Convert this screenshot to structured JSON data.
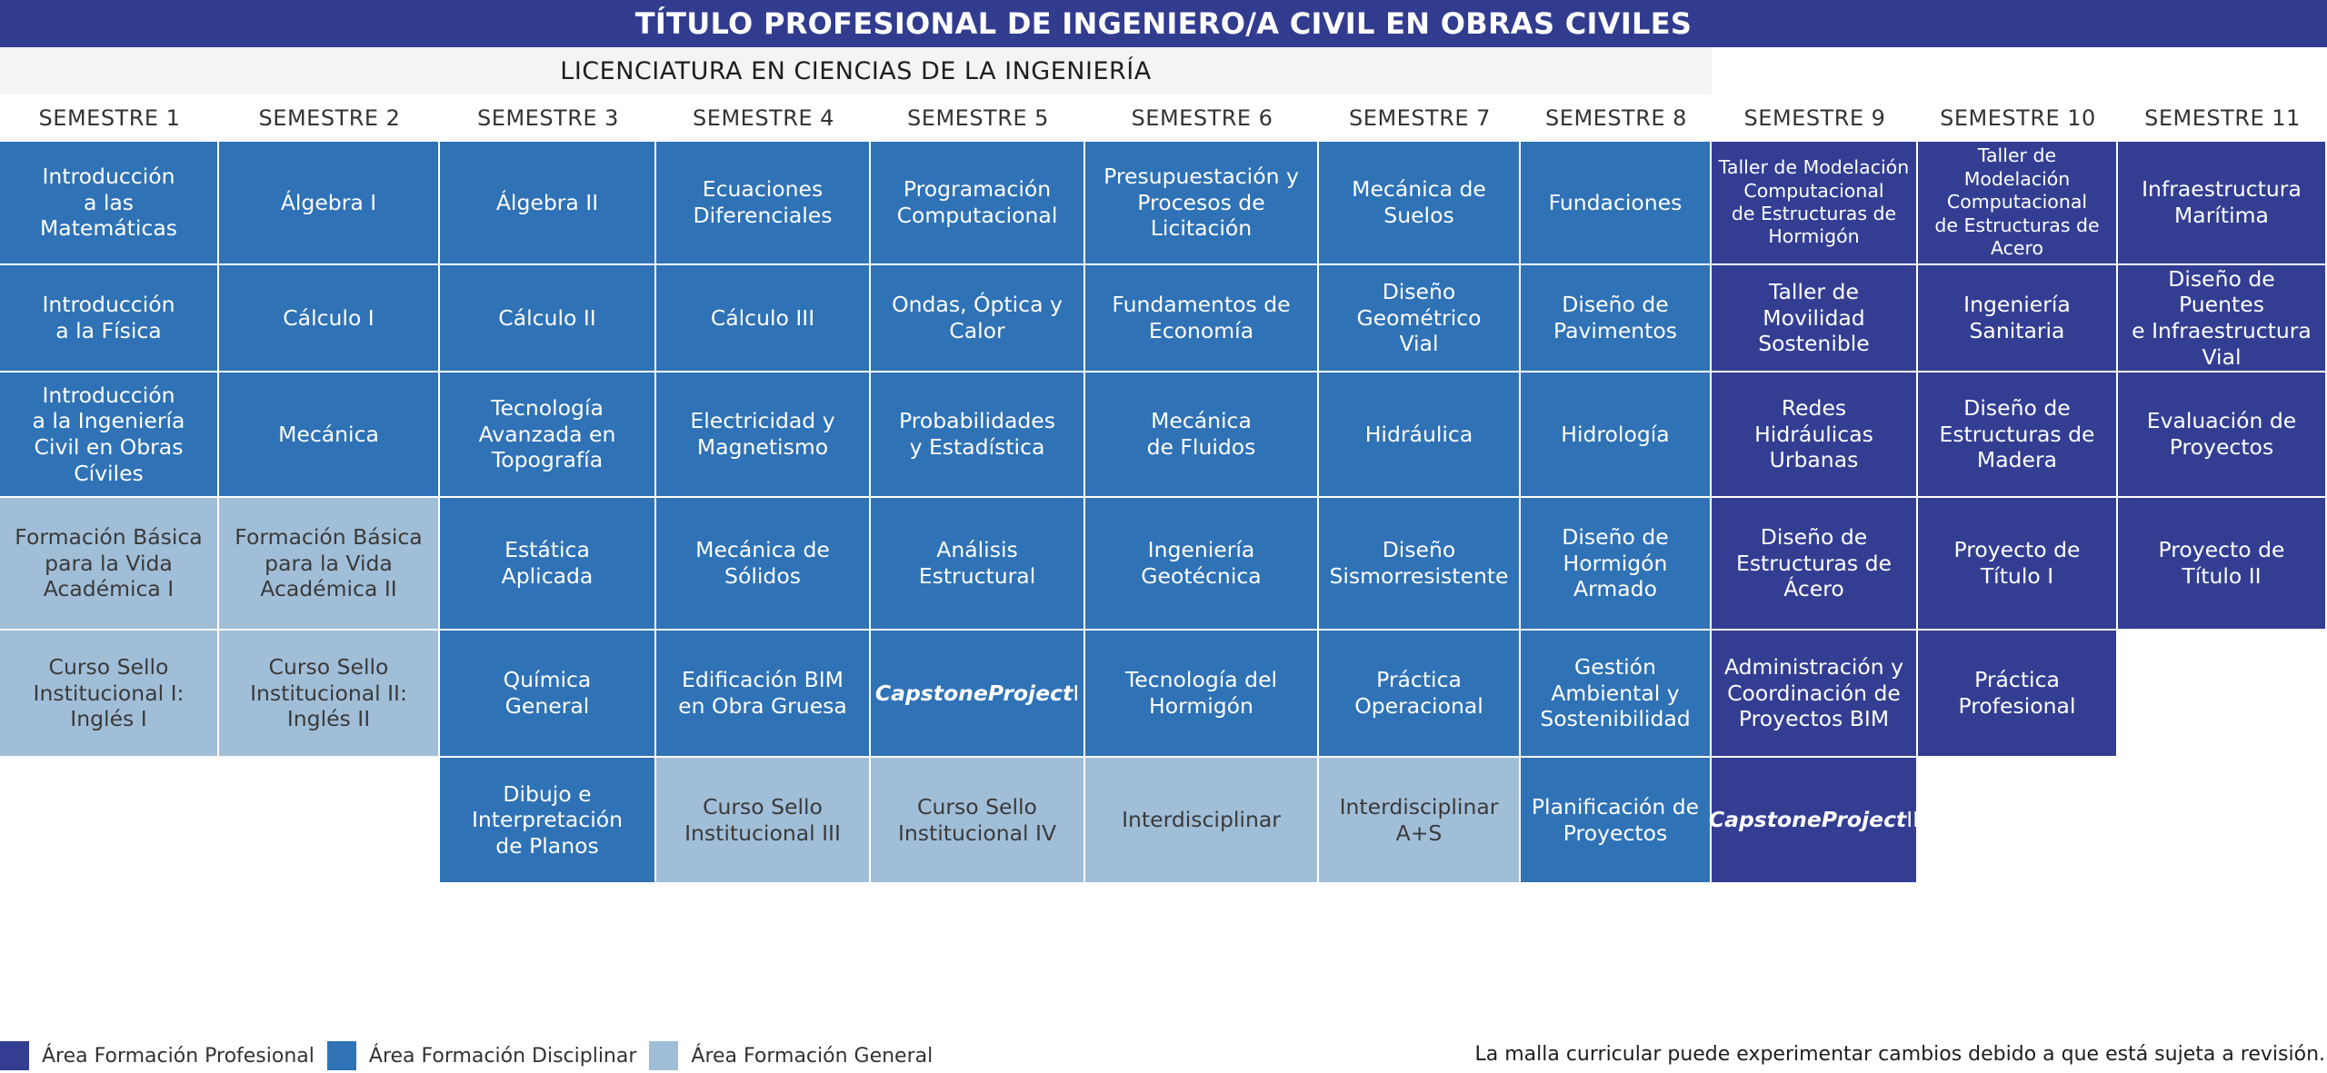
{
  "title": "TÍTULO PROFESIONAL DE INGENIERO/A CIVIL EN OBRAS CIVILES",
  "subtitle": "LICENCIATURA EN CIENCIAS DE LA INGENIERÍA",
  "colors": {
    "profesional": "#333e93",
    "disciplinar": "#2f72b6",
    "general": "#a1bed8"
  },
  "semesters": [
    {
      "label": "SEMESTRE 1",
      "courses": [
        {
          "name": "Introducción\na las\nMatemáticas",
          "area": "disciplinar"
        },
        {
          "name": "Introducción\na la Física",
          "area": "disciplinar"
        },
        {
          "name": "Introducción\na la Ingeniería\nCivil en Obras\nCíviles",
          "area": "disciplinar"
        },
        {
          "name": "Formación Básica\npara la Vida\nAcadémica I",
          "area": "general"
        },
        {
          "name": "Curso Sello\nInstitucional I:\nInglés I",
          "area": "general"
        }
      ]
    },
    {
      "label": "SEMESTRE 2",
      "courses": [
        {
          "name": "Álgebra I",
          "area": "disciplinar"
        },
        {
          "name": "Cálculo I",
          "area": "disciplinar"
        },
        {
          "name": "Mecánica",
          "area": "disciplinar"
        },
        {
          "name": "Formación Básica\npara la Vida\nAcadémica II",
          "area": "general"
        },
        {
          "name": "Curso Sello\nInstitucional II:\nInglés II",
          "area": "general"
        }
      ]
    },
    {
      "label": "SEMESTRE 3",
      "courses": [
        {
          "name": "Álgebra II",
          "area": "disciplinar"
        },
        {
          "name": "Cálculo II",
          "area": "disciplinar"
        },
        {
          "name": "Tecnología\nAvanzada en\nTopografía",
          "area": "disciplinar"
        },
        {
          "name": "Estática\nAplicada",
          "area": "disciplinar"
        },
        {
          "name": "Química\nGeneral",
          "area": "disciplinar"
        },
        {
          "name": "Dibujo e\nInterpretación\nde Planos",
          "area": "disciplinar"
        }
      ]
    },
    {
      "label": "SEMESTRE 4",
      "courses": [
        {
          "name": "Ecuaciones\nDiferenciales",
          "area": "disciplinar"
        },
        {
          "name": "Cálculo III",
          "area": "disciplinar"
        },
        {
          "name": "Electricidad y\nMagnetismo",
          "area": "disciplinar"
        },
        {
          "name": "Mecánica de\nSólidos",
          "area": "disciplinar"
        },
        {
          "name": "Edificación BIM\nen Obra Gruesa",
          "area": "disciplinar"
        },
        {
          "name": "Curso Sello\nInstitucional III",
          "area": "general"
        }
      ]
    },
    {
      "label": "SEMESTRE 5",
      "courses": [
        {
          "name": "Programación\nComputacional",
          "area": "disciplinar"
        },
        {
          "name": "Ondas, Óptica y\nCalor",
          "area": "disciplinar"
        },
        {
          "name": "Probabilidades\ny Estadística",
          "area": "disciplinar"
        },
        {
          "name": "Análisis\nEstructural",
          "area": "disciplinar"
        },
        {
          "name": "Capstone\nProject I",
          "area": "disciplinar"
        },
        {
          "name": "Curso Sello\nInstitucional IV",
          "area": "general"
        }
      ]
    },
    {
      "label": "SEMESTRE 6",
      "courses": [
        {
          "name": "Presupuestación y\nProcesos de\nLicitación",
          "area": "disciplinar"
        },
        {
          "name": "Fundamentos de\nEconomía",
          "area": "disciplinar"
        },
        {
          "name": "Mecánica\nde Fluidos",
          "area": "disciplinar"
        },
        {
          "name": "Ingeniería\nGeotécnica",
          "area": "disciplinar"
        },
        {
          "name": "Tecnología del\nHormigón",
          "area": "disciplinar"
        },
        {
          "name": "Interdisciplinar",
          "area": "general"
        }
      ]
    },
    {
      "label": "SEMESTRE 7",
      "courses": [
        {
          "name": "Mecánica de\nSuelos",
          "area": "disciplinar"
        },
        {
          "name": "Diseño\nGeométrico\nVial",
          "area": "disciplinar"
        },
        {
          "name": "Hidráulica",
          "area": "disciplinar"
        },
        {
          "name": "Diseño\nSismorresistente",
          "area": "disciplinar"
        },
        {
          "name": "Práctica\nOperacional",
          "area": "disciplinar"
        },
        {
          "name": "Interdisciplinar\nA+S",
          "area": "general"
        }
      ]
    },
    {
      "label": "SEMESTRE 8",
      "courses": [
        {
          "name": "Fundaciones",
          "area": "disciplinar"
        },
        {
          "name": "Diseño de\nPavimentos",
          "area": "disciplinar"
        },
        {
          "name": "Hidrología",
          "area": "disciplinar"
        },
        {
          "name": "Diseño de\nHormigón\nArmado",
          "area": "disciplinar"
        },
        {
          "name": "Gestión\nAmbiental y\nSostenibilidad",
          "area": "disciplinar"
        },
        {
          "name": "Planificación de\nProyectos",
          "area": "disciplinar"
        }
      ]
    },
    {
      "label": "SEMESTRE 9",
      "courses": [
        {
          "name": "Taller de Modelación\nComputacional\nde Estructuras de\nHormigón",
          "area": "profesional"
        },
        {
          "name": "Taller de\nMovilidad\nSostenible",
          "area": "profesional"
        },
        {
          "name": "Redes\nHidráulicas\nUrbanas",
          "area": "profesional"
        },
        {
          "name": "Diseño de\nEstructuras de\nÁcero",
          "area": "profesional"
        },
        {
          "name": "Administración y\nCoordinación de\nProyectos BIM",
          "area": "profesional"
        },
        {
          "name": "Capstone\nProject II",
          "area": "profesional"
        }
      ]
    },
    {
      "label": "SEMESTRE 10",
      "courses": [
        {
          "name": "Taller de Modelación\nComputacional\nde Estructuras de\nAcero",
          "area": "profesional"
        },
        {
          "name": "Ingeniería\nSanitaria",
          "area": "profesional"
        },
        {
          "name": "Diseño de\nEstructuras de\nMadera",
          "area": "profesional"
        },
        {
          "name": "Proyecto de\nTítulo I",
          "area": "profesional"
        },
        {
          "name": "Práctica\nProfesional",
          "area": "profesional"
        }
      ]
    },
    {
      "label": "SEMESTRE 11",
      "courses": [
        {
          "name": "Infraestructura\nMarítima",
          "area": "profesional"
        },
        {
          "name": "Diseño de Puentes\ne Infraestructura\nVial",
          "area": "profesional"
        },
        {
          "name": "Evaluación de\nProyectos",
          "area": "profesional"
        },
        {
          "name": "Proyecto de\nTítulo II",
          "area": "profesional"
        }
      ]
    }
  ],
  "legend": [
    {
      "label": "Área Formación Profesional",
      "area": "profesional"
    },
    {
      "label": "Área Formación Disciplinar",
      "area": "disciplinar"
    },
    {
      "label": "Área Formación General",
      "area": "general"
    }
  ],
  "disclaimer": "La malla curricular puede experimentar cambios debido a que está sujeta a revisión."
}
